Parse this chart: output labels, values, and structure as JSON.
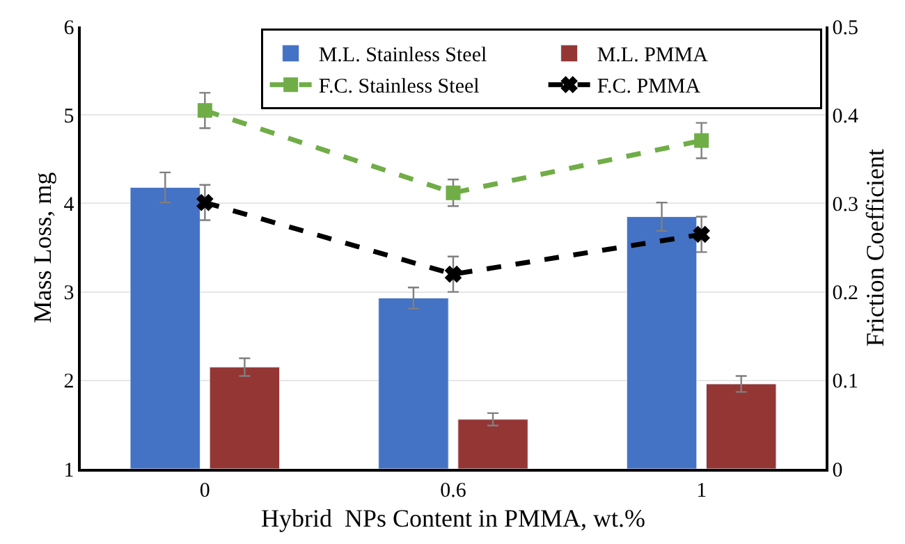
{
  "chart_data": {
    "type": "bar",
    "xlabel": "Hybrid  NPs Content in PMMA, wt.%",
    "ylabel": "Mass Loss, mg",
    "y2label": "Friction Coefficient",
    "categories": [
      "0",
      "0.6",
      "1"
    ],
    "series": [
      {
        "name": "M.L. Stainless Steel",
        "color": "#4472c4",
        "values": [
          4.18,
          2.93,
          3.85
        ],
        "errors": [
          0.17,
          0.12,
          0.16
        ]
      },
      {
        "name": "M.L. PMMA",
        "color": "#943634",
        "values": [
          2.15,
          1.56,
          1.96
        ],
        "errors": [
          0.1,
          0.07,
          0.09
        ]
      },
      {
        "name": "F.C. Stainless Steel",
        "type": "line",
        "axis": "y2",
        "color": "#70ad47",
        "marker": "square",
        "line_style": "dashed",
        "values": [
          0.405,
          0.312,
          0.371
        ],
        "errors": [
          0.02,
          0.015,
          0.02
        ]
      },
      {
        "name": "F.C. PMMA",
        "type": "line",
        "axis": "y2",
        "color": "#000000",
        "marker": "cross",
        "line_style": "dashed",
        "values": [
          0.301,
          0.22,
          0.265
        ],
        "errors": [
          0.02,
          0.02,
          0.02
        ]
      }
    ],
    "ylim": [
      1,
      6
    ],
    "yticks": [
      1,
      2,
      3,
      4,
      5,
      6
    ],
    "y2lim": [
      0,
      0.5
    ],
    "y2ticks": [
      0,
      0.1,
      0.2,
      0.3,
      0.4,
      0.5
    ],
    "grid": "y",
    "legend": "top right"
  }
}
